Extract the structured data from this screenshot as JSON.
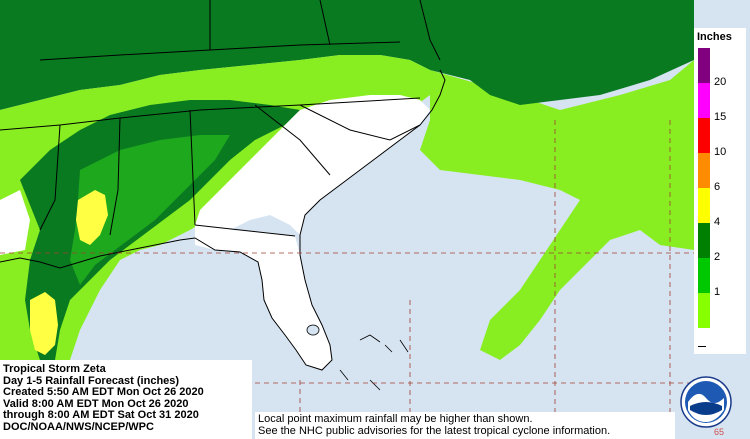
{
  "info": {
    "storm": "Tropical Storm Zeta",
    "product": "Day 1-5 Rainfall Forecast (inches)",
    "created": "Created 5:50 AM EDT Mon Oct 26 2020",
    "valid": "Valid 8:00 AM EDT Mon Oct 26 2020",
    "through": "through 8:00 AM EDT Sat Oct 31 2020",
    "agency": "DOC/NOAA/NWS/NCEP/WPC"
  },
  "disclaimer": {
    "line1": "Local point maximum rainfall may be higher than shown.",
    "line2": "See the NHC public advisories for the latest tropical cyclone information."
  },
  "legend": {
    "title": "Inches",
    "items": [
      {
        "label": "20",
        "color": "#800080"
      },
      {
        "label": "15",
        "color": "#ff00ff"
      },
      {
        "label": "10",
        "color": "#ff0000"
      },
      {
        "label": "6",
        "color": "#ff8c00"
      },
      {
        "label": "4",
        "color": "#ffff00"
      },
      {
        "label": "2",
        "color": "#008000"
      },
      {
        "label": "1",
        "color": "#00c800"
      },
      {
        "label": "",
        "color": "#88ff00"
      }
    ]
  },
  "logo": {
    "text": "NOAA"
  },
  "corner_number": "65",
  "colors": {
    "ocean": "#d6e4f2",
    "land_dry": "#ffffff",
    "rain_light": "#88ee22",
    "rain_1_2": "#1ea81e",
    "rain_2_4": "#0a7a20",
    "rain_4_6": "#ffff44",
    "grid_line": "#a04030"
  }
}
